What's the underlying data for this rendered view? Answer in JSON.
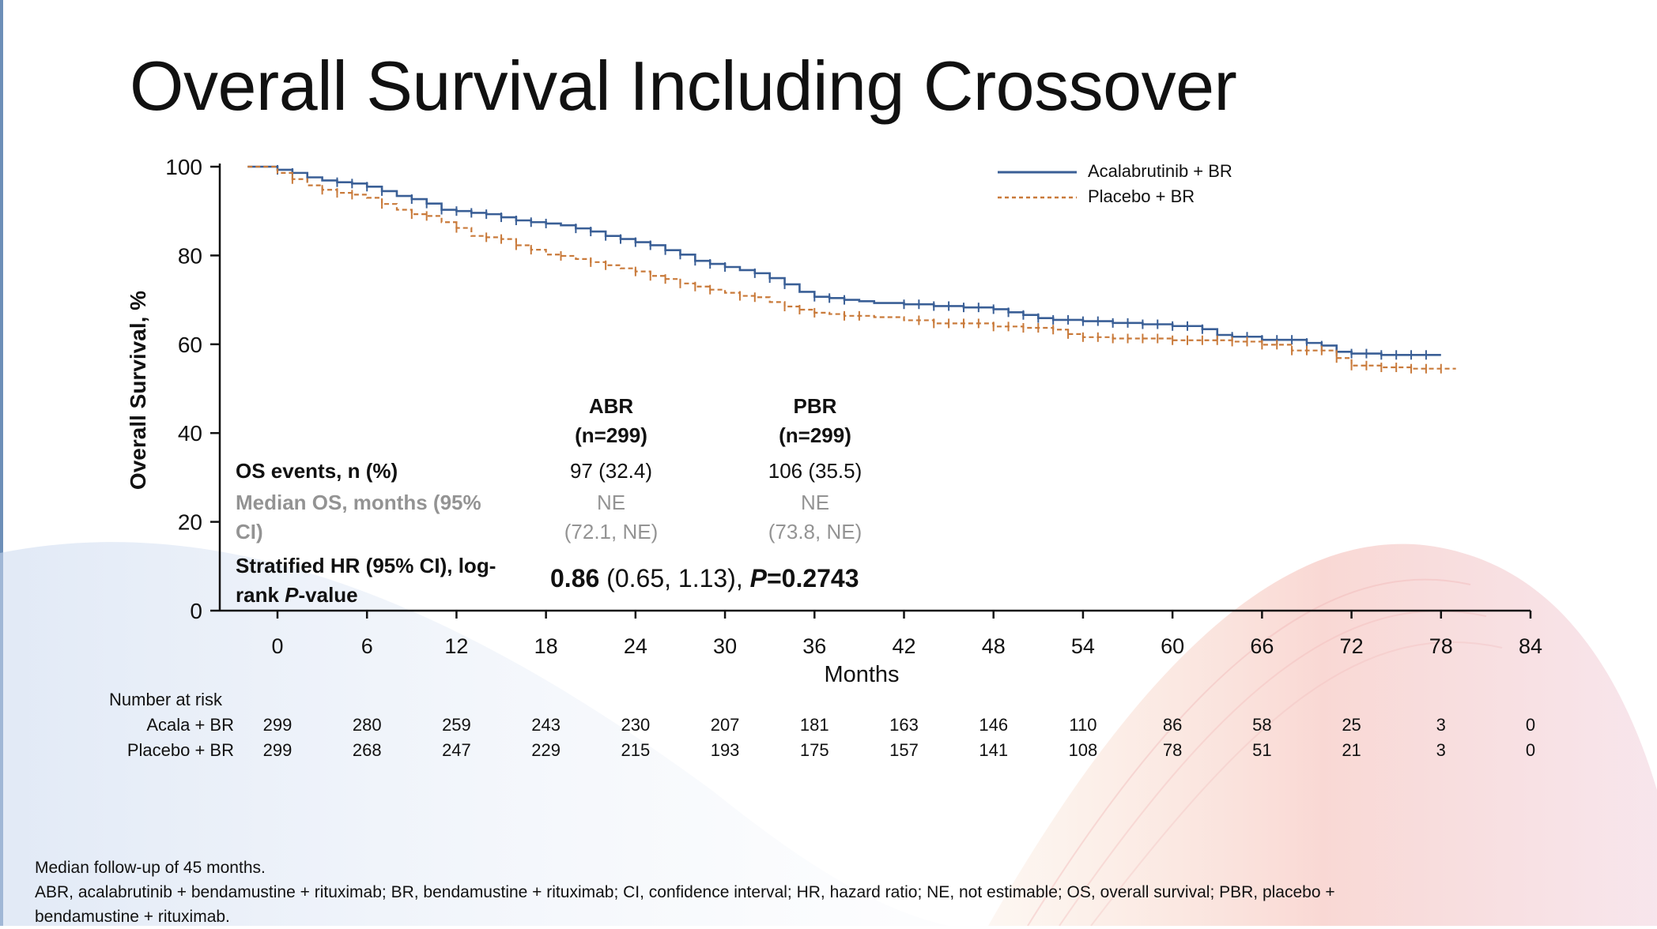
{
  "slide": {
    "title": "Overall Survival Including Crossover"
  },
  "chart_data": {
    "type": "line",
    "title": "",
    "xlabel": "Months",
    "ylabel": "Overall Survival, %",
    "xlim": [
      0,
      84
    ],
    "ylim": [
      0,
      100
    ],
    "xticks": [
      0,
      6,
      12,
      18,
      24,
      30,
      36,
      42,
      48,
      54,
      60,
      66,
      72,
      78,
      84
    ],
    "yticks": [
      0,
      20,
      40,
      60,
      80,
      100
    ],
    "legend_position": "top-right",
    "series": [
      {
        "name": "Acalabrutinib + BR",
        "color": "#3a5f96",
        "style": "solid",
        "points": [
          [
            -2,
            100
          ],
          [
            0,
            99.3
          ],
          [
            1,
            98.6
          ],
          [
            2,
            97.6
          ],
          [
            3,
            96.9
          ],
          [
            4,
            96.5
          ],
          [
            5,
            96.2
          ],
          [
            6,
            95.5
          ],
          [
            7,
            94.5
          ],
          [
            8,
            93.4
          ],
          [
            9,
            92.7
          ],
          [
            10,
            91.7
          ],
          [
            11,
            90.3
          ],
          [
            12,
            90
          ],
          [
            13,
            89.6
          ],
          [
            14,
            89.3
          ],
          [
            15,
            88.6
          ],
          [
            16,
            87.9
          ],
          [
            17,
            87.5
          ],
          [
            18,
            87.2
          ],
          [
            19,
            86.8
          ],
          [
            20,
            86.1
          ],
          [
            21,
            85.4
          ],
          [
            22,
            84.4
          ],
          [
            23,
            83.7
          ],
          [
            24,
            83
          ],
          [
            25,
            82.3
          ],
          [
            26,
            81.2
          ],
          [
            27,
            80.2
          ],
          [
            28,
            78.8
          ],
          [
            29,
            78.1
          ],
          [
            30,
            77.4
          ],
          [
            31,
            76.7
          ],
          [
            32,
            76
          ],
          [
            33,
            74.9
          ],
          [
            34,
            73.5
          ],
          [
            35,
            71.8
          ],
          [
            36,
            70.7
          ],
          [
            37,
            70.4
          ],
          [
            38,
            70
          ],
          [
            39,
            69.7
          ],
          [
            40,
            69.3
          ],
          [
            42,
            69
          ],
          [
            44,
            68.6
          ],
          [
            46,
            68.3
          ],
          [
            48,
            67.9
          ],
          [
            49,
            67.2
          ],
          [
            50,
            66.6
          ],
          [
            51,
            65.9
          ],
          [
            52,
            65.5
          ],
          [
            54,
            65.2
          ],
          [
            56,
            64.8
          ],
          [
            58,
            64.5
          ],
          [
            59,
            64.5
          ],
          [
            60,
            64.1
          ],
          [
            62,
            63.4
          ],
          [
            63,
            62.1
          ],
          [
            64,
            61.7
          ],
          [
            66,
            61
          ],
          [
            68,
            61
          ],
          [
            69,
            60.3
          ],
          [
            70,
            59.7
          ],
          [
            71,
            58.3
          ],
          [
            72,
            57.9
          ],
          [
            74,
            57.6
          ],
          [
            76,
            57.6
          ],
          [
            78,
            57.6
          ]
        ],
        "censor_marks": [
          0,
          1,
          2,
          4,
          5,
          6,
          7,
          9,
          10,
          11,
          12,
          13,
          14,
          15,
          16,
          17,
          18,
          20,
          21,
          22,
          23,
          24,
          25,
          26,
          27,
          28,
          29,
          30,
          32,
          33,
          34,
          36,
          37,
          38,
          42,
          43,
          44,
          45,
          46,
          47,
          48,
          49,
          50,
          51,
          52,
          53,
          54,
          55,
          56,
          57,
          58,
          59,
          60,
          61,
          62,
          63,
          64,
          65,
          66,
          67,
          68,
          69,
          70,
          71,
          72,
          73,
          74,
          75,
          76,
          77
        ]
      },
      {
        "name": "Placebo + BR",
        "color": "#c97a3a",
        "style": "dashed",
        "points": [
          [
            -2,
            100
          ],
          [
            0,
            98.6
          ],
          [
            1,
            97.2
          ],
          [
            2,
            95.8
          ],
          [
            3,
            94.8
          ],
          [
            4,
            94.1
          ],
          [
            5,
            93.7
          ],
          [
            6,
            93
          ],
          [
            7,
            91.6
          ],
          [
            8,
            90.3
          ],
          [
            9,
            89.3
          ],
          [
            10,
            88.9
          ],
          [
            11,
            87.5
          ],
          [
            12,
            86.2
          ],
          [
            13,
            84.4
          ],
          [
            14,
            84.1
          ],
          [
            15,
            83.7
          ],
          [
            16,
            82.3
          ],
          [
            17,
            81.3
          ],
          [
            18,
            80.2
          ],
          [
            19,
            79.9
          ],
          [
            20,
            79.2
          ],
          [
            21,
            78.5
          ],
          [
            22,
            77.8
          ],
          [
            23,
            77.1
          ],
          [
            24,
            76.4
          ],
          [
            25,
            75.4
          ],
          [
            26,
            74.7
          ],
          [
            27,
            73.7
          ],
          [
            28,
            73
          ],
          [
            29,
            72.3
          ],
          [
            30,
            71.6
          ],
          [
            31,
            70.9
          ],
          [
            32,
            70.6
          ],
          [
            33,
            69.5
          ],
          [
            34,
            68.5
          ],
          [
            35,
            67.8
          ],
          [
            36,
            67.1
          ],
          [
            37,
            66.8
          ],
          [
            38,
            66.4
          ],
          [
            40,
            66.1
          ],
          [
            42,
            65.4
          ],
          [
            44,
            64.7
          ],
          [
            46,
            64.7
          ],
          [
            48,
            64
          ],
          [
            50,
            63.7
          ],
          [
            52,
            63.3
          ],
          [
            53,
            62.3
          ],
          [
            54,
            61.6
          ],
          [
            56,
            61.3
          ],
          [
            58,
            61.3
          ],
          [
            60,
            60.9
          ],
          [
            62,
            60.9
          ],
          [
            64,
            60.6
          ],
          [
            66,
            59.9
          ],
          [
            67,
            59.9
          ],
          [
            68,
            58.6
          ],
          [
            70,
            58.6
          ],
          [
            71,
            56.9
          ],
          [
            72,
            55.2
          ],
          [
            74,
            54.8
          ],
          [
            76,
            54.5
          ],
          [
            79,
            54.5
          ]
        ],
        "censor_marks": [
          1,
          3,
          4,
          5,
          7,
          9,
          10,
          12,
          14,
          15,
          16,
          17,
          19,
          21,
          22,
          24,
          25,
          26,
          27,
          28,
          29,
          31,
          32,
          34,
          35,
          36,
          38,
          39,
          43,
          44,
          45,
          46,
          47,
          48,
          49,
          50,
          51,
          52,
          53,
          54,
          55,
          56,
          57,
          58,
          59,
          60,
          61,
          62,
          63,
          64,
          65,
          66,
          67,
          68,
          69,
          70,
          71,
          72,
          73,
          74,
          75,
          76,
          77,
          78
        ]
      }
    ]
  },
  "table": {
    "col1_header_line1": "ABR",
    "col1_header_line2": "(n=299)",
    "col2_header_line1": "PBR",
    "col2_header_line2": "(n=299)",
    "row1_label": "OS events, n (%)",
    "row1_val1": "97 (32.4)",
    "row1_val2": "106 (35.5)",
    "row2_label_line1": "Median OS, months (95%",
    "row2_label_line2": "CI)",
    "row2_val1_line1": "NE",
    "row2_val1_line2": "(72.1, NE)",
    "row2_val2_line1": "NE",
    "row2_val2_line2": "(73.8, NE)",
    "row3_label_line1": "Stratified HR (95% CI), log-",
    "row3_label_line2_a": "rank ",
    "row3_label_line2_b": "P",
    "row3_label_line2_c": "-value",
    "hr_bold": "0.86",
    "hr_ci": " (0.65, 1.13), ",
    "hr_p_label": "P",
    "hr_p_value": "=0.2743"
  },
  "risk_table": {
    "header": "Number at risk",
    "rows": [
      {
        "label": "Acala + BR",
        "values": [
          "299",
          "280",
          "259",
          "243",
          "230",
          "207",
          "181",
          "163",
          "146",
          "110",
          "86",
          "58",
          "25",
          "3",
          "0"
        ]
      },
      {
        "label": "Placebo + BR",
        "values": [
          "299",
          "268",
          "247",
          "229",
          "215",
          "193",
          "175",
          "157",
          "141",
          "108",
          "78",
          "51",
          "21",
          "3",
          "0"
        ]
      }
    ]
  },
  "footnotes": {
    "line1": "Median follow-up of 45 months.",
    "line2": "ABR, acalabrutinib + bendamustine + rituximab; BR, bendamustine + rituximab; CI, confidence interval; HR, hazard ratio; NE, not estimable; OS, overall survival; PBR, placebo +",
    "line3": "bendamustine + rituximab."
  }
}
